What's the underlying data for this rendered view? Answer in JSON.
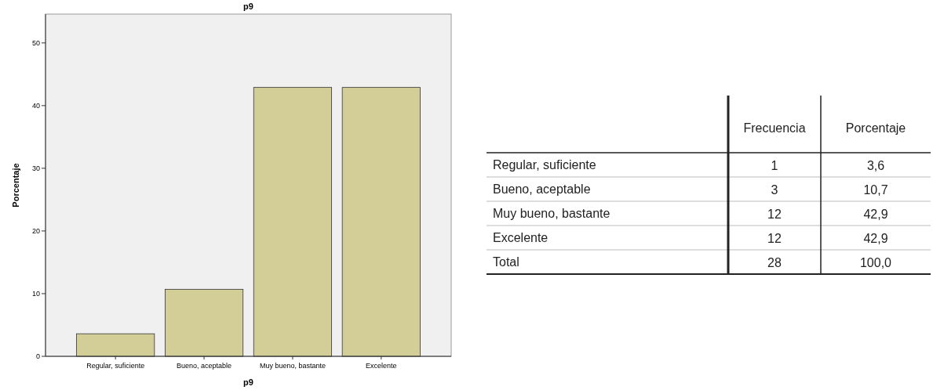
{
  "chart_data": [
    {
      "type": "bar",
      "title": "p9",
      "xlabel": "p9",
      "ylabel": "Porcentaje",
      "categories": [
        "Regular, suficiente",
        "Bueno, aceptable",
        "Muy bueno, bastante",
        "Excelente"
      ],
      "values": [
        3.6,
        10.7,
        42.9,
        42.9
      ],
      "color": "#d3ce98",
      "ylim": [
        0,
        54.6
      ],
      "yticks": [
        0,
        10,
        20,
        30,
        40,
        50
      ],
      "grid": false
    },
    {
      "type": "other",
      "data_labels": true,
      "categories": [
        "Regular, suficiente",
        "Bueno, aceptable",
        "Muy bueno, bastante",
        "Excelente",
        "Total"
      ],
      "series": [
        {
          "name": "Frecuencia",
          "values": [
            1,
            3,
            12,
            12,
            28
          ]
        },
        {
          "name": "Porcentaje",
          "values": [
            3.6,
            10.7,
            42.9,
            42.9,
            100.0
          ],
          "value_labels": [
            "3,6",
            "10,7",
            "42,9",
            "42,9",
            "100,0"
          ]
        }
      ]
    }
  ]
}
